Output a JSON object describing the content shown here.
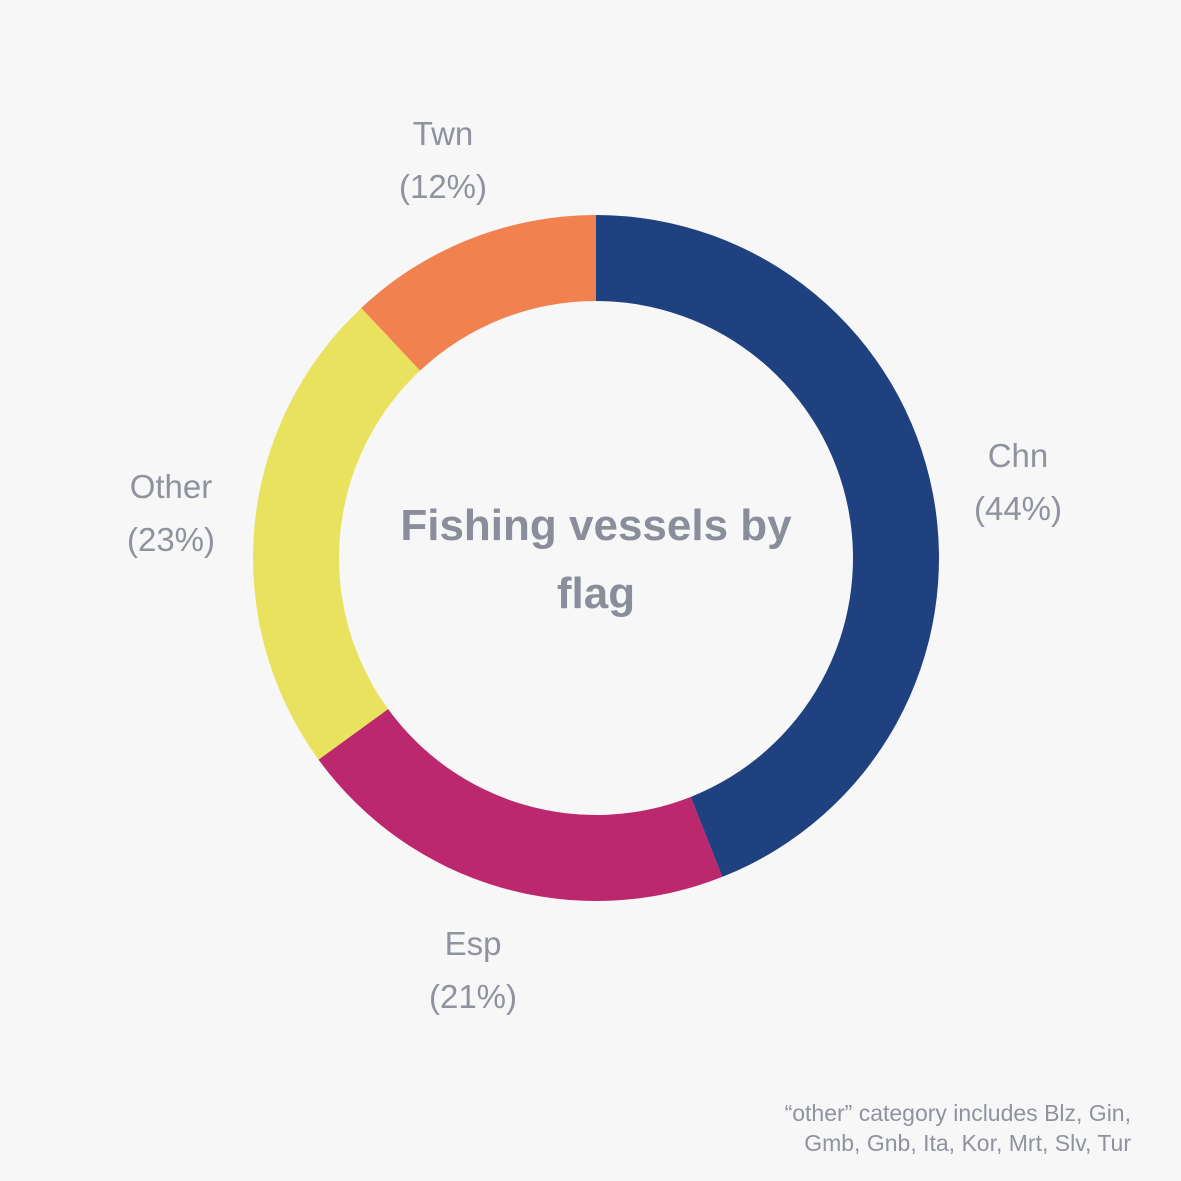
{
  "chart_data": {
    "type": "pie",
    "title": "Fishing vessels by flag",
    "categories": [
      "Chn",
      "Esp",
      "Other",
      "Twn"
    ],
    "values": [
      44,
      21,
      23,
      12
    ],
    "value_labels": [
      "(44%)",
      "(21%)",
      "(23%)",
      "(12%)"
    ],
    "colors": [
      "#20417f",
      "#bb286e",
      "#e9e25e",
      "#f28150"
    ],
    "start_angle_deg": 0,
    "direction": "clockwise",
    "donut": true,
    "legend": "none"
  },
  "footnote": {
    "line1": "“other” category includes Blz, Gin,",
    "line2": "Gmb, Gnb, Ita, Kor, Mrt, Slv, Tur"
  }
}
